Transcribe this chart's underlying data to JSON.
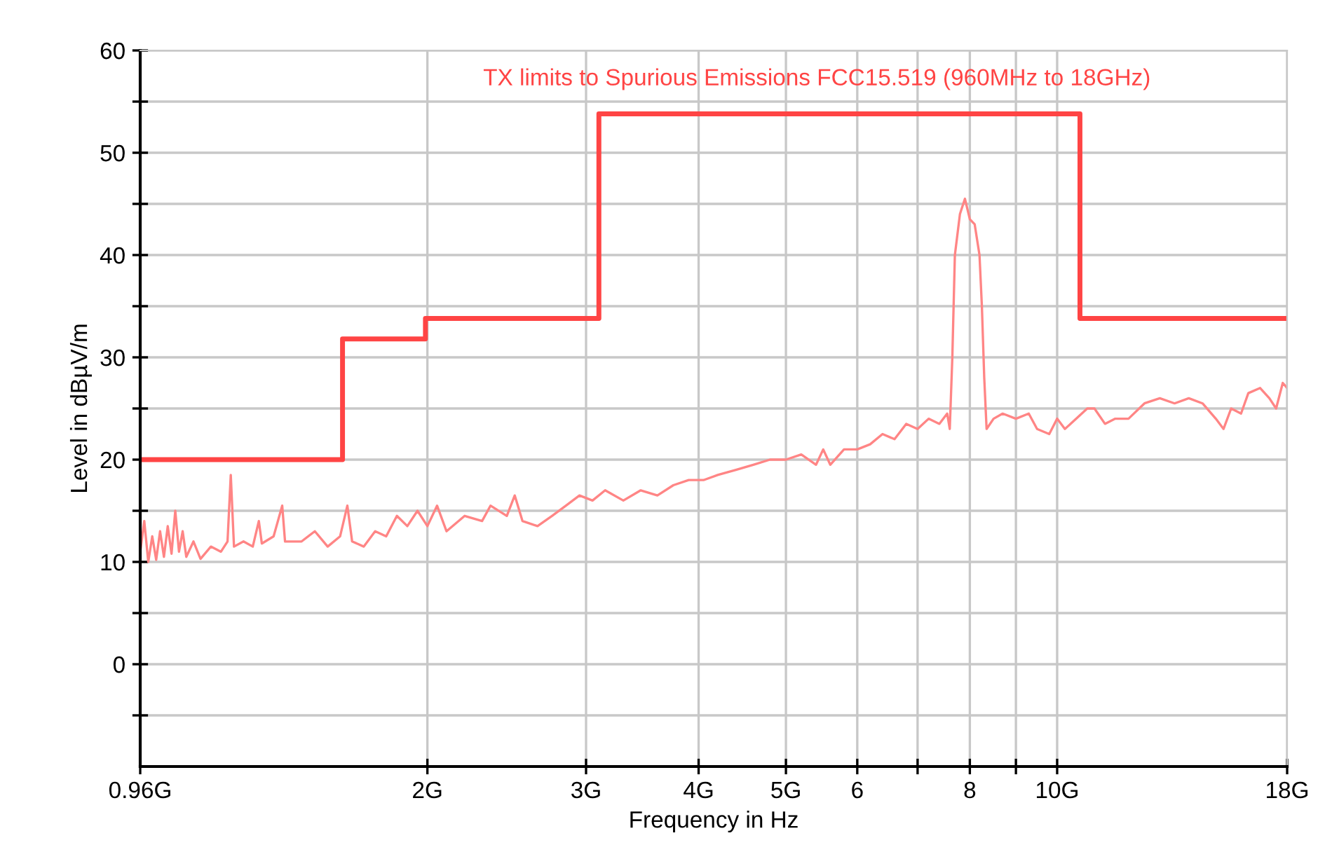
{
  "chart_data": {
    "type": "line",
    "title": "TX limits to Spurious Emissions FCC15.519 (960MHz to 18GHz)",
    "xlabel": "Frequency in Hz",
    "ylabel": "Level in dBµV/m",
    "log": "x",
    "grid": true,
    "marker": "none",
    "line_style": "solid",
    "xlim": [
      0.96,
      18
    ],
    "xticks": [
      {
        "value": 0.96,
        "label": "0.96G"
      },
      {
        "value": 2,
        "label": "2G"
      },
      {
        "value": 3,
        "label": "3G"
      },
      {
        "value": 4,
        "label": "4G"
      },
      {
        "value": 5,
        "label": "5G"
      },
      6,
      {
        "value": 7,
        "label": null
      },
      8,
      {
        "value": 9,
        "label": null
      },
      {
        "value": 10,
        "label": "10G"
      },
      {
        "value": 18,
        "label": "18G"
      }
    ],
    "ylim": [
      -10,
      60
    ],
    "yticks": [
      {
        "value": -5,
        "label": null
      },
      0,
      {
        "value": 5,
        "label": null
      },
      10,
      {
        "value": 15,
        "label": null
      },
      20,
      {
        "value": 25,
        "label": null
      },
      30,
      {
        "value": 35,
        "label": null
      },
      40,
      {
        "value": 45,
        "label": null
      },
      50,
      {
        "value": 55,
        "label": null
      },
      60
    ],
    "series": [
      {
        "type": "step",
        "color": "#ff4444",
        "x": [
          0.96,
          1.61,
          1.99,
          3.1,
          10.6,
          18
        ],
        "values": [
          20,
          31.8,
          33.8,
          53.8,
          33.8,
          33.8
        ]
      },
      {
        "color": "#ff8585",
        "x": [
          0.96,
          0.97,
          0.98,
          0.99,
          1.0,
          1.01,
          1.02,
          1.03,
          1.04,
          1.05,
          1.06,
          1.07,
          1.08,
          1.1,
          1.12,
          1.15,
          1.18,
          1.2,
          1.21,
          1.22,
          1.25,
          1.28,
          1.3,
          1.31,
          1.35,
          1.38,
          1.39,
          1.45,
          1.5,
          1.55,
          1.6,
          1.63,
          1.65,
          1.7,
          1.75,
          1.8,
          1.85,
          1.9,
          1.95,
          2.0,
          2.05,
          2.1,
          2.2,
          2.3,
          2.35,
          2.45,
          2.5,
          2.55,
          2.65,
          2.75,
          2.85,
          2.95,
          3.05,
          3.15,
          3.3,
          3.45,
          3.6,
          3.75,
          3.9,
          4.05,
          4.2,
          4.4,
          4.6,
          4.8,
          5.0,
          5.2,
          5.4,
          5.5,
          5.6,
          5.8,
          6.0,
          6.2,
          6.4,
          6.6,
          6.8,
          7.0,
          7.2,
          7.4,
          7.55,
          7.6,
          7.65,
          7.7,
          7.8,
          7.9,
          8.0,
          8.1,
          8.2,
          8.25,
          8.3,
          8.35,
          8.5,
          8.7,
          9.0,
          9.3,
          9.5,
          9.8,
          10.0,
          10.2,
          10.5,
          10.8,
          11.0,
          11.3,
          11.6,
          12.0,
          12.5,
          13.0,
          13.5,
          14.0,
          14.5,
          15.0,
          15.3,
          15.6,
          16.0,
          16.3,
          16.8,
          17.2,
          17.5,
          17.8,
          18.0
        ],
        "values": [
          11,
          14,
          10,
          12.5,
          10.2,
          13,
          10.5,
          13.5,
          10.8,
          15,
          11,
          13,
          10.5,
          12,
          10.3,
          11.5,
          11,
          12,
          18.5,
          11.5,
          12,
          11.5,
          14,
          11.8,
          12.5,
          15.5,
          12,
          12,
          13,
          11.5,
          12.5,
          15.5,
          12,
          11.5,
          13,
          12.5,
          14.5,
          13.5,
          15,
          13.5,
          15.5,
          13,
          14.5,
          14,
          15.5,
          14.5,
          16.5,
          14,
          13.5,
          14.5,
          15.5,
          16.5,
          16,
          17,
          16,
          17,
          16.5,
          17.5,
          18,
          18,
          18.5,
          19,
          19.5,
          20,
          20,
          20.5,
          19.5,
          21,
          19.5,
          21,
          21,
          21.5,
          22.5,
          22,
          23.5,
          23,
          24,
          23.5,
          24.5,
          23,
          30,
          40,
          44,
          45.5,
          43.5,
          43,
          40,
          35,
          28,
          23,
          24,
          24.5,
          24,
          24.5,
          23,
          22.5,
          24,
          23,
          24,
          25,
          25,
          23.5,
          24,
          24,
          25.5,
          26,
          25.5,
          26,
          25.5,
          24,
          23,
          25,
          24.5,
          26.5,
          27,
          26,
          25,
          27.5,
          27
        ]
      }
    ]
  }
}
